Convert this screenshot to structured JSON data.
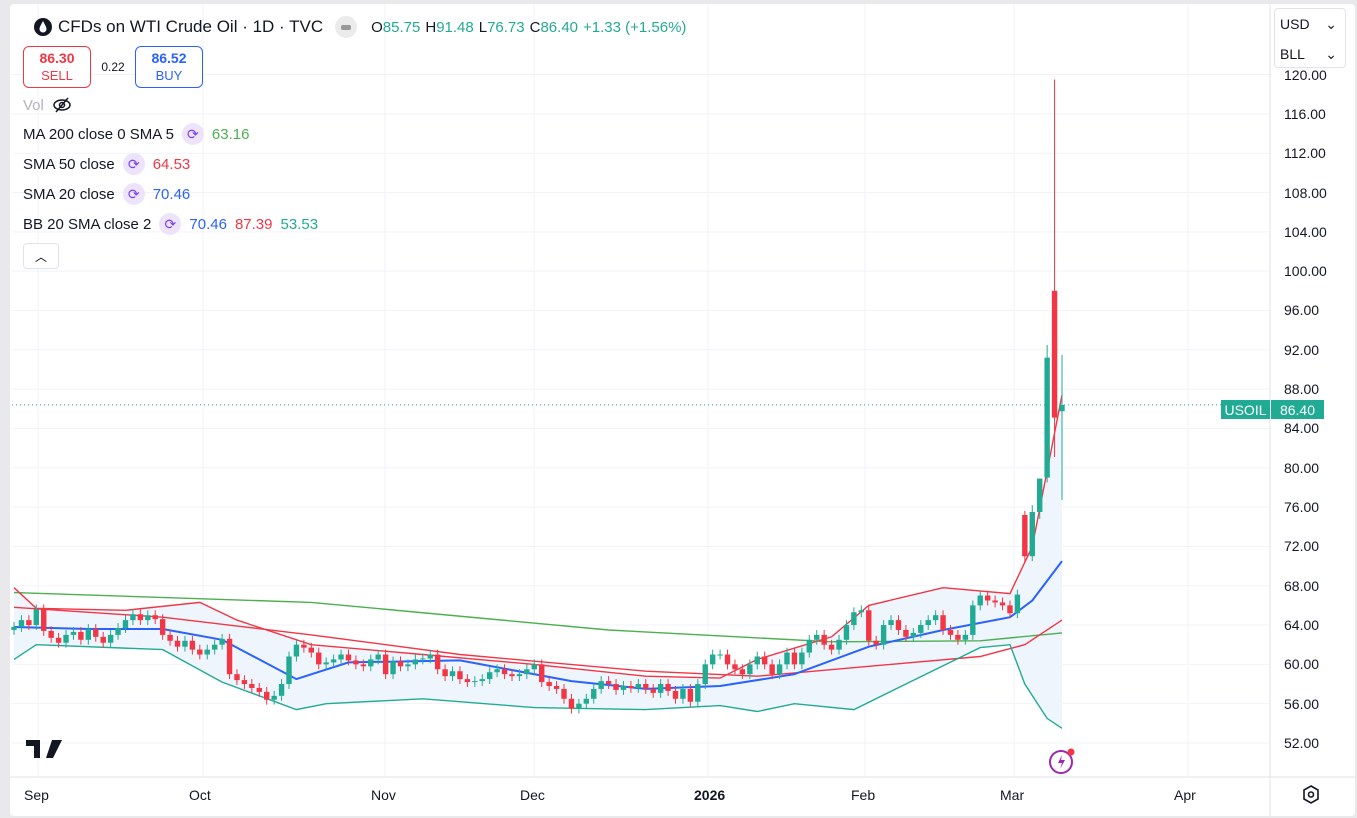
{
  "header": {
    "title": "CFDs on WTI Crude Oil · 1D · TVC",
    "o_label": "O",
    "open": "85.75",
    "h_label": "H",
    "high": "91.48",
    "l_label": "L",
    "low": "76.73",
    "c_label": "C",
    "close": "86.40",
    "change": "+1.33 (+1.56%)"
  },
  "trade": {
    "sell_price": "86.30",
    "sell_label": "SELL",
    "spread": "0.22",
    "buy_price": "86.52",
    "buy_label": "BUY"
  },
  "legend": {
    "vol": "Vol",
    "ma200": {
      "label": "MA 200 close 0 SMA 5",
      "value": "63.16"
    },
    "sma50": {
      "label": "SMA 50 close",
      "value": "64.53"
    },
    "sma20": {
      "label": "SMA 20 close",
      "value": "70.46"
    },
    "bb": {
      "label": "BB 20 SMA close 2",
      "basis": "70.46",
      "upper": "87.39",
      "lower": "53.53"
    }
  },
  "currency": "USD",
  "unit": "BLL",
  "price_tag": {
    "symbol": "USOIL",
    "price": "86.40"
  },
  "colors": {
    "up": "#22ab94",
    "down": "#f23645",
    "ma200": "#4caf50",
    "sma50": "#f23645",
    "sma20": "#2962ff",
    "bb_upper": "#f23645",
    "bb_lower": "#22ab94",
    "bb_fill": "#eef5fc"
  },
  "chart_data": {
    "type": "candlestick",
    "title": "CFDs on WTI Crude Oil · 1D · TVC",
    "y_ticks": [
      "120.00",
      "116.00",
      "112.00",
      "108.00",
      "104.00",
      "100.00",
      "96.00",
      "92.00",
      "88.00",
      "84.00",
      "80.00",
      "76.00",
      "72.00",
      "68.00",
      "64.00",
      "60.00",
      "56.00",
      "52.00"
    ],
    "ylim": [
      50.5,
      121.5
    ],
    "x_ticks": [
      "Sep",
      "Oct",
      "Nov",
      "Dec",
      "2026",
      "Feb",
      "Mar",
      "Apr"
    ],
    "closes": [
      63.8,
      64.5,
      64.0,
      65.6,
      63.4,
      62.7,
      62.2,
      63.0,
      63.3,
      62.5,
      63.6,
      62.8,
      62.2,
      63.0,
      63.7,
      64.5,
      65.1,
      64.5,
      65.0,
      64.6,
      63.0,
      62.4,
      61.8,
      62.4,
      61.5,
      61.0,
      61.5,
      62.0,
      62.6,
      59.0,
      58.4,
      58.0,
      57.6,
      57.2,
      56.4,
      56.8,
      58.0,
      60.8,
      62.0,
      61.7,
      61.2,
      60.0,
      60.2,
      60.5,
      61.0,
      60.4,
      60.0,
      59.8,
      60.5,
      61.0,
      59.0,
      60.3,
      59.8,
      60.0,
      60.5,
      60.6,
      61.0,
      59.5,
      58.8,
      59.3,
      58.5,
      58.2,
      58.3,
      58.5,
      59.2,
      59.5,
      59.0,
      58.8,
      59.0,
      59.5,
      60.0,
      58.2,
      57.8,
      57.5,
      56.5,
      55.5,
      56.0,
      56.5,
      57.5,
      58.3,
      58.0,
      57.4,
      57.8,
      57.6,
      58.0,
      57.5,
      57.1,
      58.0,
      57.3,
      56.5,
      57.5,
      56.2,
      58.0,
      60.0,
      61.0,
      61.0,
      60.0,
      59.5,
      59.0,
      60.0,
      60.8,
      60.0,
      59.0,
      60.0,
      61.2,
      60.0,
      61.2,
      62.5,
      63.0,
      62.0,
      61.5,
      62.5,
      64.0,
      65.3,
      65.5,
      62.4,
      62.0,
      64.0,
      64.5,
      63.5,
      62.8,
      63.2,
      64.0,
      64.5,
      65.0,
      63.5,
      63.0,
      62.5,
      63.0,
      66.0,
      67.0,
      66.5,
      66.3,
      66.0,
      65.2,
      67.1
    ],
    "last_bars_ohlc": [
      [
        75.2,
        75.6,
        70.4,
        71.0
      ],
      [
        71.0,
        76.2,
        70.5,
        75.5
      ],
      [
        75.5,
        77.8,
        74.8,
        78.9
      ],
      [
        79.0,
        92.5,
        78.5,
        91.2
      ],
      [
        98.0,
        119.5,
        81.1,
        85.1
      ],
      [
        85.75,
        91.48,
        76.73,
        86.4
      ]
    ],
    "series": [
      {
        "name": "MA 200",
        "points": [
          [
            0,
            67.3
          ],
          [
            40,
            66.3
          ],
          [
            80,
            63.5
          ],
          [
            110,
            62.3
          ],
          [
            130,
            62.4
          ],
          [
            141,
            63.2
          ]
        ]
      },
      {
        "name": "SMA 50",
        "points": [
          [
            0,
            65.8
          ],
          [
            20,
            64.8
          ],
          [
            40,
            63.0
          ],
          [
            60,
            61.0
          ],
          [
            85,
            59.3
          ],
          [
            100,
            58.8
          ],
          [
            115,
            59.8
          ],
          [
            130,
            60.8
          ],
          [
            136,
            62.0
          ],
          [
            141,
            64.5
          ]
        ]
      },
      {
        "name": "SMA 20",
        "points": [
          [
            0,
            63.8
          ],
          [
            10,
            63.6
          ],
          [
            20,
            63.6
          ],
          [
            28,
            62.5
          ],
          [
            38,
            58.5
          ],
          [
            45,
            60.2
          ],
          [
            60,
            60.4
          ],
          [
            75,
            58.3
          ],
          [
            85,
            57.5
          ],
          [
            95,
            57.8
          ],
          [
            105,
            59.0
          ],
          [
            115,
            61.8
          ],
          [
            125,
            63.5
          ],
          [
            134,
            64.8
          ],
          [
            137,
            66.5
          ],
          [
            141,
            70.5
          ]
        ]
      },
      {
        "name": "BB upper",
        "points": [
          [
            0,
            67.8
          ],
          [
            3,
            65.7
          ],
          [
            15,
            65.5
          ],
          [
            25,
            66.3
          ],
          [
            30,
            64.5
          ],
          [
            40,
            62.0
          ],
          [
            55,
            61.0
          ],
          [
            70,
            60.0
          ],
          [
            85,
            58.8
          ],
          [
            95,
            58.6
          ],
          [
            100,
            60.5
          ],
          [
            110,
            62.8
          ],
          [
            115,
            66.0
          ],
          [
            125,
            67.8
          ],
          [
            134,
            67.2
          ],
          [
            137,
            72.0
          ],
          [
            141,
            87.4
          ]
        ]
      },
      {
        "name": "BB lower",
        "points": [
          [
            0,
            60.5
          ],
          [
            3,
            62.0
          ],
          [
            20,
            61.5
          ],
          [
            28,
            58.2
          ],
          [
            38,
            55.4
          ],
          [
            42,
            56.0
          ],
          [
            55,
            56.5
          ],
          [
            70,
            55.6
          ],
          [
            85,
            55.4
          ],
          [
            95,
            55.8
          ],
          [
            100,
            55.2
          ],
          [
            105,
            56.0
          ],
          [
            113,
            55.4
          ],
          [
            120,
            58.0
          ],
          [
            130,
            61.7
          ],
          [
            134,
            62.0
          ],
          [
            136,
            58.0
          ],
          [
            139,
            54.5
          ],
          [
            141,
            53.5
          ]
        ]
      }
    ]
  }
}
